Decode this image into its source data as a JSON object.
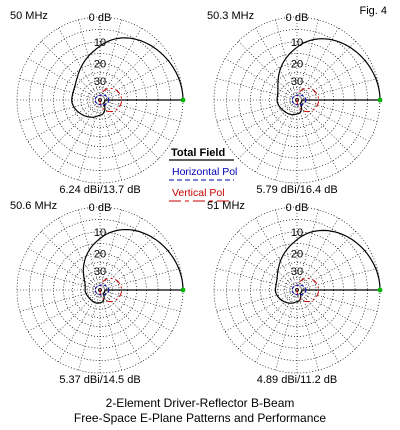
{
  "figure_label": "Fig. 4",
  "caption_line1": "2-Element Driver-Reflector B-Beam",
  "caption_line2": "Free-Space E-Plane Patterns and Performance",
  "legend": {
    "total": "Total Field",
    "horizontal": "Horizontal Pol",
    "vertical": "Vertical Pol"
  },
  "ring_labels": [
    "0 dB",
    "10",
    "20",
    "30"
  ],
  "colors": {
    "total": "#000000",
    "horizontal": "#0000b4",
    "vertical": "#c80000",
    "marker": "#00b400",
    "grid": "#000000"
  },
  "panels": [
    {
      "freq": "50 MHz",
      "perf": "6.24 dBi/13.7 dB"
    },
    {
      "freq": "50.3 MHz",
      "perf": "5.79 dBi/16.4 dB"
    },
    {
      "freq": "50.6 MHz",
      "perf": "5.37 dBi/14.5 dB"
    },
    {
      "freq": "51 MHz",
      "perf": "4.89 dBi/11.2 dB"
    }
  ]
}
